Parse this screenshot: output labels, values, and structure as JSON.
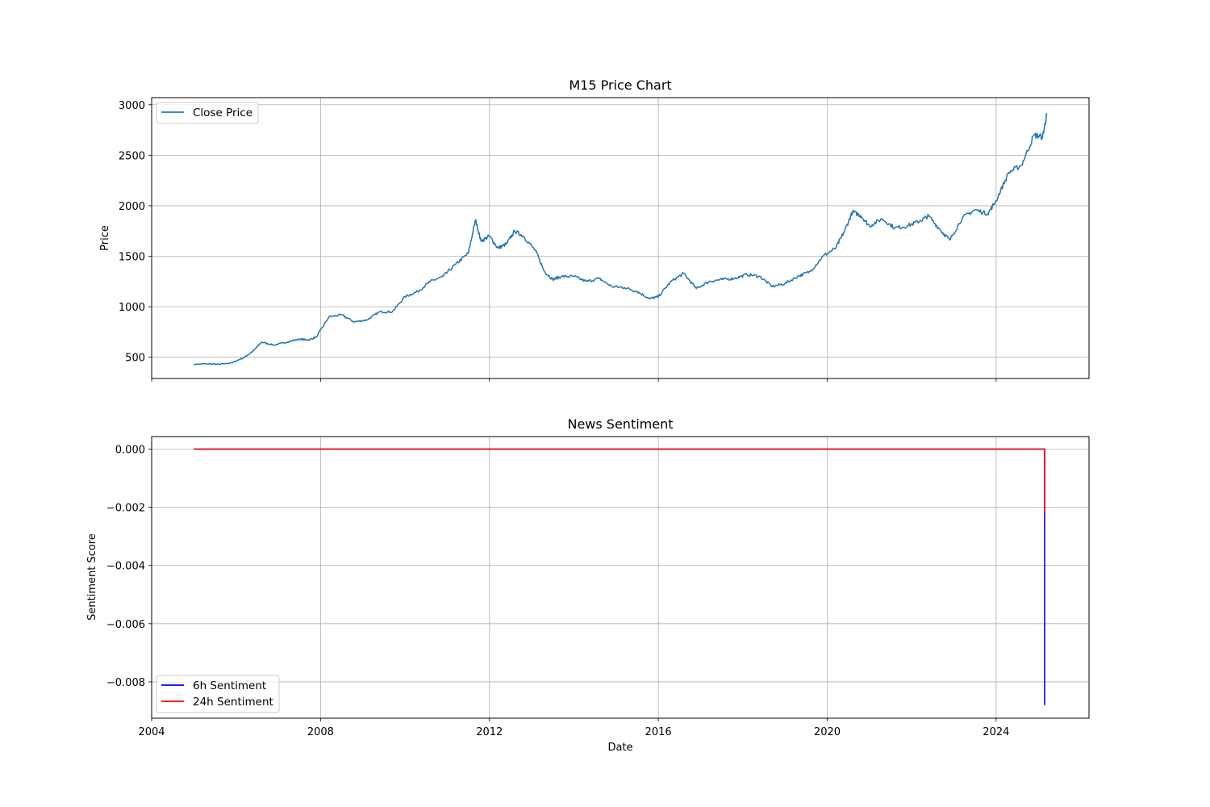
{
  "chart_data": [
    {
      "type": "line",
      "title": "M15 Price Chart",
      "xlabel": "",
      "ylabel": "Price",
      "xlim": [
        2004.0,
        2026.2
      ],
      "ylim": [
        290,
        3070
      ],
      "x_ticks": [
        2004,
        2008,
        2012,
        2016,
        2020,
        2024
      ],
      "x_tick_labels_visible": false,
      "y_ticks": [
        500,
        1000,
        1500,
        2000,
        2500,
        3000
      ],
      "y_tick_labels": [
        "500",
        "1000",
        "1500",
        "2000",
        "2500",
        "3000"
      ],
      "grid": true,
      "legend": "upper-left",
      "series": [
        {
          "name": "Close Price",
          "color": "#1f77b4",
          "x": [
            2005.0,
            2005.3,
            2005.6,
            2005.9,
            2006.2,
            2006.4,
            2006.6,
            2006.9,
            2007.2,
            2007.5,
            2007.7,
            2007.9,
            2008.2,
            2008.5,
            2008.8,
            2009.1,
            2009.4,
            2009.7,
            2010.0,
            2010.3,
            2010.6,
            2010.9,
            2011.2,
            2011.5,
            2011.67,
            2011.8,
            2012.0,
            2012.2,
            2012.4,
            2012.6,
            2012.8,
            2013.1,
            2013.3,
            2013.5,
            2013.7,
            2014.0,
            2014.3,
            2014.6,
            2014.9,
            2015.2,
            2015.5,
            2015.8,
            2016.0,
            2016.3,
            2016.6,
            2016.9,
            2017.2,
            2017.5,
            2017.8,
            2018.1,
            2018.4,
            2018.7,
            2019.0,
            2019.3,
            2019.6,
            2019.9,
            2020.2,
            2020.4,
            2020.6,
            2020.8,
            2021.0,
            2021.3,
            2021.6,
            2021.9,
            2022.2,
            2022.4,
            2022.7,
            2022.9,
            2023.2,
            2023.5,
            2023.8,
            2024.0,
            2024.3,
            2024.6,
            2024.9,
            2025.1,
            2025.2
          ],
          "values": [
            430,
            435,
            430,
            445,
            500,
            560,
            650,
            620,
            650,
            680,
            670,
            700,
            900,
            920,
            850,
            870,
            950,
            950,
            1100,
            1150,
            1250,
            1300,
            1420,
            1530,
            1860,
            1650,
            1700,
            1580,
            1620,
            1750,
            1700,
            1550,
            1350,
            1270,
            1300,
            1300,
            1250,
            1280,
            1200,
            1190,
            1150,
            1080,
            1100,
            1250,
            1330,
            1180,
            1250,
            1270,
            1280,
            1320,
            1300,
            1200,
            1230,
            1300,
            1350,
            1500,
            1580,
            1740,
            1940,
            1900,
            1800,
            1870,
            1780,
            1800,
            1850,
            1900,
            1750,
            1660,
            1880,
            1960,
            1920,
            2050,
            2330,
            2400,
            2700,
            2680,
            2900
          ]
        }
      ]
    },
    {
      "type": "line",
      "title": "News Sentiment",
      "xlabel": "Date",
      "ylabel": "Sentiment Score",
      "xlim": [
        2004.0,
        2026.2
      ],
      "ylim": [
        -0.00925,
        0.00043
      ],
      "x_ticks": [
        2004,
        2008,
        2012,
        2016,
        2020,
        2024
      ],
      "x_tick_labels": [
        "2004",
        "2008",
        "2012",
        "2016",
        "2020",
        "2024"
      ],
      "y_ticks": [
        0.0,
        -0.002,
        -0.004,
        -0.006,
        -0.008
      ],
      "y_tick_labels": [
        "0.000",
        "−0.002",
        "−0.004",
        "−0.006",
        "−0.008"
      ],
      "grid": true,
      "legend": "lower-left",
      "series": [
        {
          "name": "6h Sentiment",
          "color": "#0000ff",
          "x": [
            2005.0,
            2025.15,
            2025.15
          ],
          "values": [
            0.0,
            0.0,
            -0.0088
          ]
        },
        {
          "name": "24h Sentiment",
          "color": "#ff0000",
          "x": [
            2005.0,
            2025.15,
            2025.15
          ],
          "values": [
            0.0,
            0.0,
            -0.0022
          ]
        }
      ]
    }
  ]
}
